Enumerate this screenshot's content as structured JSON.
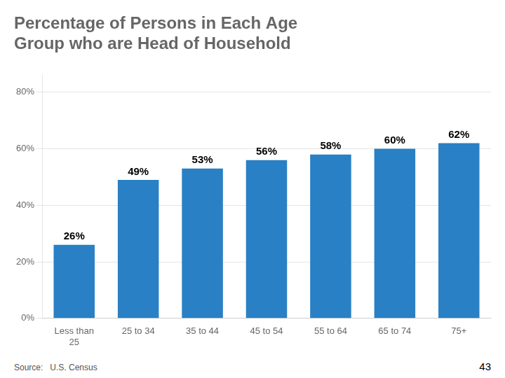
{
  "chart_data": {
    "type": "bar",
    "title": [
      "Percentage of Persons in Each Age",
      "Group who are Head of Household"
    ],
    "categories": [
      "Less than\n25",
      "25 to 34",
      "35 to 44",
      "45 to 54",
      "55 to 64",
      "65 to 74",
      "75+"
    ],
    "values": [
      0.26,
      0.49,
      0.53,
      0.56,
      0.58,
      0.6,
      0.62
    ],
    "value_labels": [
      "26%",
      "49%",
      "53%",
      "56%",
      "58%",
      "60%",
      "62%"
    ],
    "data_labels": true,
    "color": "#2980C4",
    "ylim": [
      0,
      0.86
    ],
    "yticks": [
      {
        "value": 0.0,
        "label": "0%"
      },
      {
        "value": 0.2,
        "label": "20%"
      },
      {
        "value": 0.4,
        "label": "40%"
      },
      {
        "value": 0.6,
        "label": "60%"
      },
      {
        "value": 0.8,
        "label": "80%"
      }
    ],
    "grid": true,
    "annotations": [
      "Source:   U.S. Census",
      "43"
    ]
  }
}
